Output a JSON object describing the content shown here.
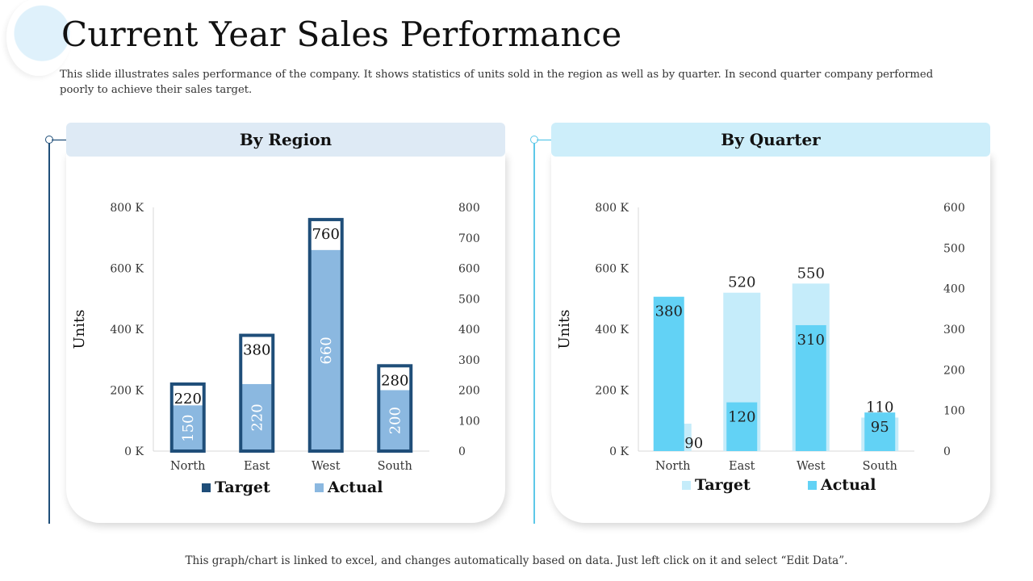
{
  "slide": {
    "title": "Current Year Sales Performance",
    "subtitle": "This slide illustrates sales performance of the company. It shows statistics of units sold in the region as well as by quarter. In second quarter company performed poorly to achieve their sales target.",
    "footer": "This graph/chart is linked to excel, and changes automatically based on data. Just left click on it and select “Edit Data”."
  },
  "panels": {
    "region": {
      "header": "By Region",
      "accent": "#1f4e79",
      "header_bg": "#deeaf5"
    },
    "quarter": {
      "header": "By Quarter",
      "accent": "#5dc8e8",
      "header_bg": "#cdeefa"
    }
  },
  "chart_data": [
    {
      "type": "bar",
      "title": "By Region",
      "categories": [
        "North",
        "East",
        "West",
        "South"
      ],
      "series": [
        {
          "name": "Target",
          "values": [
            220,
            380,
            760,
            280
          ],
          "color": "#1f4e79"
        },
        {
          "name": "Actual",
          "values": [
            150,
            220,
            660,
            200
          ],
          "color": "#8bb8e0"
        }
      ],
      "ylabel": "Units",
      "ylim": [
        0,
        800
      ],
      "y_ticks": [
        "0 K",
        "200 K",
        "400 K",
        "600 K",
        "800 K"
      ],
      "y2lim": [
        0,
        800
      ],
      "y2_ticks": [
        "0",
        "100",
        "200",
        "300",
        "400",
        "500",
        "600",
        "700",
        "800"
      ],
      "legend_position": "bottom"
    },
    {
      "type": "bar",
      "title": "By Quarter",
      "categories": [
        "North",
        "East",
        "West",
        "South"
      ],
      "series": [
        {
          "name": "Target",
          "values": [
            90,
            520,
            550,
            110
          ],
          "color": "#c5ecfa"
        },
        {
          "name": "Actual",
          "values": [
            380,
            120,
            310,
            95
          ],
          "color": "#62d2f5"
        }
      ],
      "ylabel": "Units",
      "ylim": [
        0,
        800
      ],
      "y_ticks": [
        "0 K",
        "200 K",
        "400 K",
        "600 K",
        "800 K"
      ],
      "y2lim": [
        0,
        600
      ],
      "y2_ticks": [
        "0",
        "100",
        "200",
        "300",
        "400",
        "500",
        "600"
      ],
      "legend_position": "bottom"
    }
  ]
}
